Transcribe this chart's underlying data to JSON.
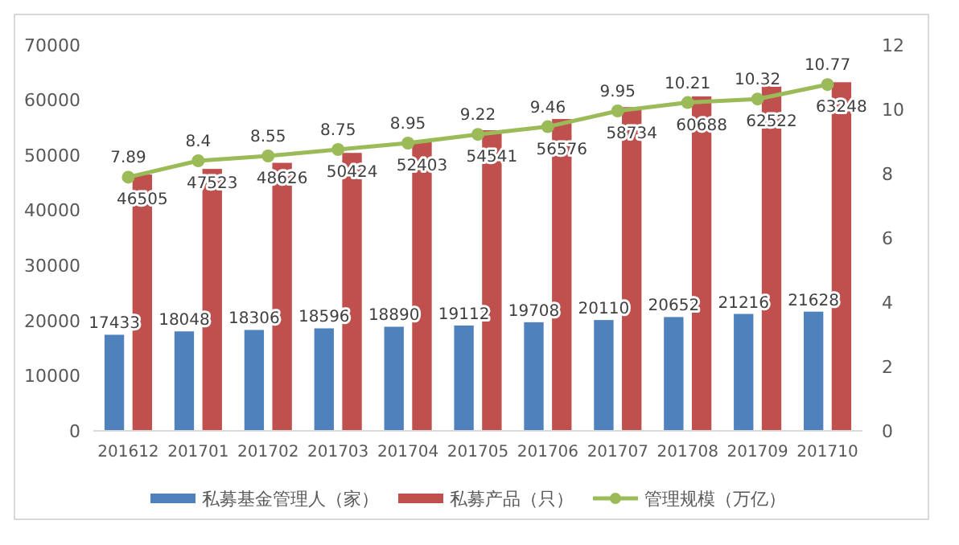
{
  "chart_data": {
    "type": "bar",
    "categories": [
      "201612",
      "201701",
      "201702",
      "201703",
      "201704",
      "201705",
      "201706",
      "201707",
      "201708",
      "201709",
      "201710"
    ],
    "series": [
      {
        "name": "私募基金管理人（家）",
        "color": "#4f81bd",
        "values": [
          17433,
          18048,
          18306,
          18596,
          18890,
          19112,
          19708,
          20110,
          20652,
          21216,
          21628
        ]
      },
      {
        "name": "私募产品（只）",
        "color": "#c0504d",
        "values": [
          46505,
          47523,
          48626,
          50424,
          52403,
          54541,
          56576,
          58734,
          60688,
          62522,
          63248
        ]
      },
      {
        "name": "管理规模（万亿）",
        "type": "line",
        "axis": "y2",
        "color": "#9bbb59",
        "marker": "circle",
        "values": [
          7.89,
          8.4,
          8.55,
          8.75,
          8.95,
          9.22,
          9.46,
          9.95,
          10.21,
          10.32,
          10.77
        ]
      }
    ],
    "ylim": [
      0,
      70000
    ],
    "yticks": [
      0,
      10000,
      20000,
      30000,
      40000,
      50000,
      60000,
      70000
    ],
    "y2lim": [
      0,
      12
    ],
    "y2ticks": [
      0,
      2,
      4,
      6,
      8,
      10,
      12
    ],
    "data_labels": true,
    "legend": "bottom",
    "grid": false
  }
}
